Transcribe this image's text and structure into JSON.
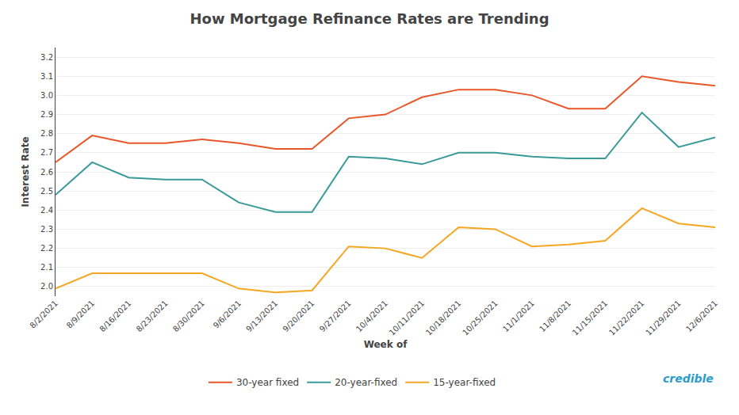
{
  "chart_data": {
    "type": "line",
    "title": "How Mortgage Refinance Rates are Trending",
    "xlabel": "Week of",
    "ylabel": "Interest Rate",
    "categories": [
      "8/2/2021",
      "8/9/2021",
      "8/16/2021",
      "8/23/2021",
      "8/30/2021",
      "9/6/2021",
      "9/13/2021",
      "9/20/2021",
      "9/27/2021",
      "10/4/2021",
      "10/11/2021",
      "10/18/2021",
      "10/25/2021",
      "11/1/2021",
      "11/8/2021",
      "11/15/2021",
      "11/22/2021",
      "11/29/2021",
      "12/6/2021"
    ],
    "series": [
      {
        "name": "30-year fixed",
        "color": "#E8572A",
        "values": [
          2.65,
          2.79,
          2.75,
          2.75,
          2.77,
          2.75,
          2.72,
          2.72,
          2.88,
          2.9,
          2.99,
          3.03,
          3.03,
          3.0,
          2.93,
          2.93,
          3.1,
          3.07,
          3.05
        ]
      },
      {
        "name": "20-year-fixed",
        "color": "#3A9A9A",
        "values": [
          2.48,
          2.65,
          2.57,
          2.56,
          2.56,
          2.44,
          2.39,
          2.39,
          2.68,
          2.67,
          2.64,
          2.7,
          2.7,
          2.68,
          2.67,
          2.67,
          2.91,
          2.73,
          2.78
        ]
      },
      {
        "name": "15-year-fixed",
        "color": "#F5A623",
        "values": [
          1.99,
          2.07,
          2.07,
          2.07,
          2.07,
          1.99,
          1.97,
          1.98,
          2.21,
          2.2,
          2.15,
          2.31,
          2.3,
          2.21,
          2.22,
          2.24,
          2.41,
          2.33,
          2.31
        ]
      }
    ],
    "ylim": [
      1.95,
      3.25
    ],
    "yticks": [
      {
        "value": 2,
        "label": "2.0"
      },
      2.1,
      2.2,
      2.3,
      2.4,
      2.5,
      2.6,
      2.7,
      2.8,
      2.9,
      {
        "value": 3,
        "label": "3.0"
      },
      3.1,
      3.2
    ],
    "grid": true,
    "legend": "bottom",
    "annotations": [
      {
        "text": "credible",
        "color": "#2E9CCA"
      }
    ]
  }
}
